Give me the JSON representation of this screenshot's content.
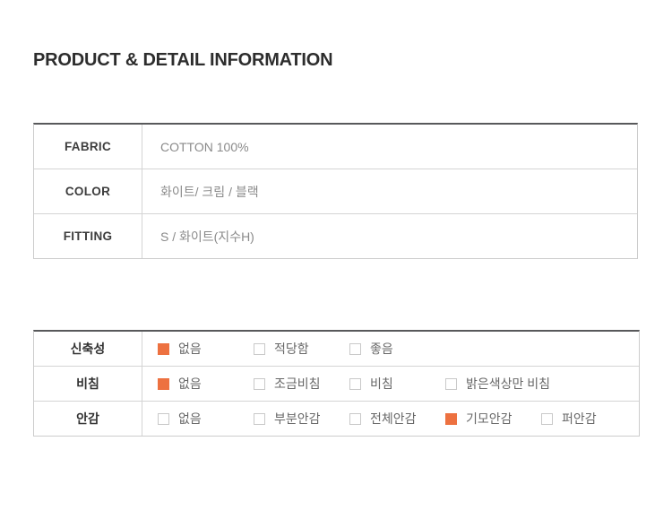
{
  "section": {
    "title": "PRODUCT & DETAIL INFORMATION"
  },
  "colors": {
    "accent_orange": "#ed7140",
    "table_top_border": "#58595b",
    "table_border": "#cccccc",
    "table_inner_border": "#d4d4d4",
    "label_text": "#3d3d3d",
    "value_text": "#8a8a8a",
    "option_text": "#686868"
  },
  "info_table": {
    "rows": [
      {
        "label": "FABRIC",
        "value": "COTTON 100%"
      },
      {
        "label": "COLOR",
        "value": "화이트/ 크림 / 블랙"
      },
      {
        "label": "FITTING",
        "value": "S / 화이트(지수H)"
      }
    ]
  },
  "detail_table": {
    "rows": [
      {
        "label": "신축성",
        "options": [
          {
            "text": "없음",
            "checked": true
          },
          {
            "text": "적당함",
            "checked": false
          },
          {
            "text": "좋음",
            "checked": false
          }
        ]
      },
      {
        "label": "비침",
        "options": [
          {
            "text": "없음",
            "checked": true
          },
          {
            "text": "조금비침",
            "checked": false
          },
          {
            "text": "비침",
            "checked": false
          },
          {
            "text": "밝은색상만 비침",
            "checked": false
          }
        ]
      },
      {
        "label": "안감",
        "options": [
          {
            "text": "없음",
            "checked": false
          },
          {
            "text": "부분안감",
            "checked": false
          },
          {
            "text": "전체안감",
            "checked": false
          },
          {
            "text": "기모안감",
            "checked": true
          },
          {
            "text": "퍼안감",
            "checked": false
          }
        ]
      }
    ]
  }
}
